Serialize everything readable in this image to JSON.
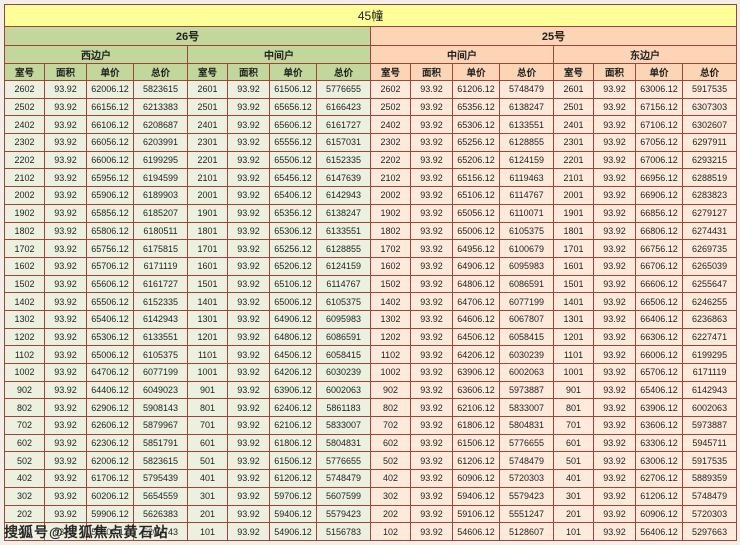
{
  "page_title": "45幢",
  "watermark": "搜狐号@搜狐焦点黄石站",
  "colors": {
    "title_bg": "#ffff99",
    "header_green": "#c3d69b",
    "header_peach": "#fbd5b5",
    "data_green": "#ebf1de",
    "data_peach": "#fdeada",
    "grid_border": "#a0433b"
  },
  "table": {
    "column_headers": [
      "室号",
      "面积",
      "单价",
      "总价"
    ],
    "row_fields": [
      "room",
      "area",
      "unit_price",
      "total_price"
    ],
    "buildings": [
      {
        "label": "26号",
        "theme": "green"
      },
      {
        "label": "25号",
        "theme": "peach"
      }
    ],
    "sections": [
      {
        "building": "26号",
        "unit_type": "西边户",
        "theme": "green",
        "rows": [
          [
            "2602",
            "93.92",
            "62006.12",
            "5823615"
          ],
          [
            "2502",
            "93.92",
            "66156.12",
            "6213383"
          ],
          [
            "2402",
            "93.92",
            "66106.12",
            "6208687"
          ],
          [
            "2302",
            "93.92",
            "66056.12",
            "6203991"
          ],
          [
            "2202",
            "93.92",
            "66006.12",
            "6199295"
          ],
          [
            "2102",
            "93.92",
            "65956.12",
            "6194599"
          ],
          [
            "2002",
            "93.92",
            "65906.12",
            "6189903"
          ],
          [
            "1902",
            "93.92",
            "65856.12",
            "6185207"
          ],
          [
            "1802",
            "93.92",
            "65806.12",
            "6180511"
          ],
          [
            "1702",
            "93.92",
            "65756.12",
            "6175815"
          ],
          [
            "1602",
            "93.92",
            "65706.12",
            "6171119"
          ],
          [
            "1502",
            "93.92",
            "65606.12",
            "6161727"
          ],
          [
            "1402",
            "93.92",
            "65506.12",
            "6152335"
          ],
          [
            "1302",
            "93.92",
            "65406.12",
            "6142943"
          ],
          [
            "1202",
            "93.92",
            "65306.12",
            "6133551"
          ],
          [
            "1102",
            "93.92",
            "65006.12",
            "6105375"
          ],
          [
            "1002",
            "93.92",
            "64706.12",
            "6077199"
          ],
          [
            "902",
            "93.92",
            "64406.12",
            "6049023"
          ],
          [
            "802",
            "93.92",
            "62906.12",
            "5908143"
          ],
          [
            "702",
            "93.92",
            "62606.12",
            "5879967"
          ],
          [
            "602",
            "93.92",
            "62306.12",
            "5851791"
          ],
          [
            "502",
            "93.92",
            "62006.12",
            "5823615"
          ],
          [
            "402",
            "93.92",
            "61706.12",
            "5795439"
          ],
          [
            "302",
            "93.92",
            "60206.12",
            "5654559"
          ],
          [
            "202",
            "93.92",
            "59906.12",
            "5626383"
          ],
          [
            "102",
            "93.92",
            "55406.12",
            "5203743"
          ]
        ]
      },
      {
        "building": "26号",
        "unit_type": "中间户",
        "theme": "green",
        "rows": [
          [
            "2601",
            "93.92",
            "61506.12",
            "5776655"
          ],
          [
            "2501",
            "93.92",
            "65656.12",
            "6166423"
          ],
          [
            "2401",
            "93.92",
            "65606.12",
            "6161727"
          ],
          [
            "2301",
            "93.92",
            "65556.12",
            "6157031"
          ],
          [
            "2201",
            "93.92",
            "65506.12",
            "6152335"
          ],
          [
            "2101",
            "93.92",
            "65456.12",
            "6147639"
          ],
          [
            "2001",
            "93.92",
            "65406.12",
            "6142943"
          ],
          [
            "1901",
            "93.92",
            "65356.12",
            "6138247"
          ],
          [
            "1801",
            "93.92",
            "65306.12",
            "6133551"
          ],
          [
            "1701",
            "93.92",
            "65256.12",
            "6128855"
          ],
          [
            "1601",
            "93.92",
            "65206.12",
            "6124159"
          ],
          [
            "1501",
            "93.92",
            "65106.12",
            "6114767"
          ],
          [
            "1401",
            "93.92",
            "65006.12",
            "6105375"
          ],
          [
            "1301",
            "93.92",
            "64906.12",
            "6095983"
          ],
          [
            "1201",
            "93.92",
            "64806.12",
            "6086591"
          ],
          [
            "1101",
            "93.92",
            "64506.12",
            "6058415"
          ],
          [
            "1001",
            "93.92",
            "64206.12",
            "6030239"
          ],
          [
            "901",
            "93.92",
            "63906.12",
            "6002063"
          ],
          [
            "801",
            "93.92",
            "62406.12",
            "5861183"
          ],
          [
            "701",
            "93.92",
            "62106.12",
            "5833007"
          ],
          [
            "601",
            "93.92",
            "61806.12",
            "5804831"
          ],
          [
            "501",
            "93.92",
            "61506.12",
            "5776655"
          ],
          [
            "401",
            "93.92",
            "61206.12",
            "5748479"
          ],
          [
            "301",
            "93.92",
            "59706.12",
            "5607599"
          ],
          [
            "201",
            "93.92",
            "59406.12",
            "5579423"
          ],
          [
            "101",
            "93.92",
            "54906.12",
            "5156783"
          ]
        ]
      },
      {
        "building": "25号",
        "unit_type": "中间户",
        "theme": "peach",
        "rows": [
          [
            "2602",
            "93.92",
            "61206.12",
            "5748479"
          ],
          [
            "2502",
            "93.92",
            "65356.12",
            "6138247"
          ],
          [
            "2402",
            "93.92",
            "65306.12",
            "6133551"
          ],
          [
            "2302",
            "93.92",
            "65256.12",
            "6128855"
          ],
          [
            "2202",
            "93.92",
            "65206.12",
            "6124159"
          ],
          [
            "2102",
            "93.92",
            "65156.12",
            "6119463"
          ],
          [
            "2002",
            "93.92",
            "65106.12",
            "6114767"
          ],
          [
            "1902",
            "93.92",
            "65056.12",
            "6110071"
          ],
          [
            "1802",
            "93.92",
            "65006.12",
            "6105375"
          ],
          [
            "1702",
            "93.92",
            "64956.12",
            "6100679"
          ],
          [
            "1602",
            "93.92",
            "64906.12",
            "6095983"
          ],
          [
            "1502",
            "93.92",
            "64806.12",
            "6086591"
          ],
          [
            "1402",
            "93.92",
            "64706.12",
            "6077199"
          ],
          [
            "1302",
            "93.92",
            "64606.12",
            "6067807"
          ],
          [
            "1202",
            "93.92",
            "64506.12",
            "6058415"
          ],
          [
            "1102",
            "93.92",
            "64206.12",
            "6030239"
          ],
          [
            "1002",
            "93.92",
            "63906.12",
            "6002063"
          ],
          [
            "902",
            "93.92",
            "63606.12",
            "5973887"
          ],
          [
            "802",
            "93.92",
            "62106.12",
            "5833007"
          ],
          [
            "702",
            "93.92",
            "61806.12",
            "5804831"
          ],
          [
            "602",
            "93.92",
            "61506.12",
            "5776655"
          ],
          [
            "502",
            "93.92",
            "61206.12",
            "5748479"
          ],
          [
            "402",
            "93.92",
            "60906.12",
            "5720303"
          ],
          [
            "302",
            "93.92",
            "59406.12",
            "5579423"
          ],
          [
            "202",
            "93.92",
            "59106.12",
            "5551247"
          ],
          [
            "102",
            "93.92",
            "54606.12",
            "5128607"
          ]
        ]
      },
      {
        "building": "25号",
        "unit_type": "东边户",
        "theme": "peach",
        "rows": [
          [
            "2601",
            "93.92",
            "63006.12",
            "5917535"
          ],
          [
            "2501",
            "93.92",
            "67156.12",
            "6307303"
          ],
          [
            "2401",
            "93.92",
            "67106.12",
            "6302607"
          ],
          [
            "2301",
            "93.92",
            "67056.12",
            "6297911"
          ],
          [
            "2201",
            "93.92",
            "67006.12",
            "6293215"
          ],
          [
            "2101",
            "93.92",
            "66956.12",
            "6288519"
          ],
          [
            "2001",
            "93.92",
            "66906.12",
            "6283823"
          ],
          [
            "1901",
            "93.92",
            "66856.12",
            "6279127"
          ],
          [
            "1801",
            "93.92",
            "66806.12",
            "6274431"
          ],
          [
            "1701",
            "93.92",
            "66756.12",
            "6269735"
          ],
          [
            "1601",
            "93.92",
            "66706.12",
            "6265039"
          ],
          [
            "1501",
            "93.92",
            "66606.12",
            "6255647"
          ],
          [
            "1401",
            "93.92",
            "66506.12",
            "6246255"
          ],
          [
            "1301",
            "93.92",
            "66406.12",
            "6236863"
          ],
          [
            "1201",
            "93.92",
            "66306.12",
            "6227471"
          ],
          [
            "1101",
            "93.92",
            "66006.12",
            "6199295"
          ],
          [
            "1001",
            "93.92",
            "65706.12",
            "6171119"
          ],
          [
            "901",
            "93.92",
            "65406.12",
            "6142943"
          ],
          [
            "801",
            "93.92",
            "63906.12",
            "6002063"
          ],
          [
            "701",
            "93.92",
            "63606.12",
            "5973887"
          ],
          [
            "601",
            "93.92",
            "63306.12",
            "5945711"
          ],
          [
            "501",
            "93.92",
            "63006.12",
            "5917535"
          ],
          [
            "401",
            "93.92",
            "62706.12",
            "5889359"
          ],
          [
            "301",
            "93.92",
            "61206.12",
            "5748479"
          ],
          [
            "201",
            "93.92",
            "60906.12",
            "5720303"
          ],
          [
            "101",
            "93.92",
            "56406.12",
            "5297663"
          ]
        ]
      }
    ]
  }
}
